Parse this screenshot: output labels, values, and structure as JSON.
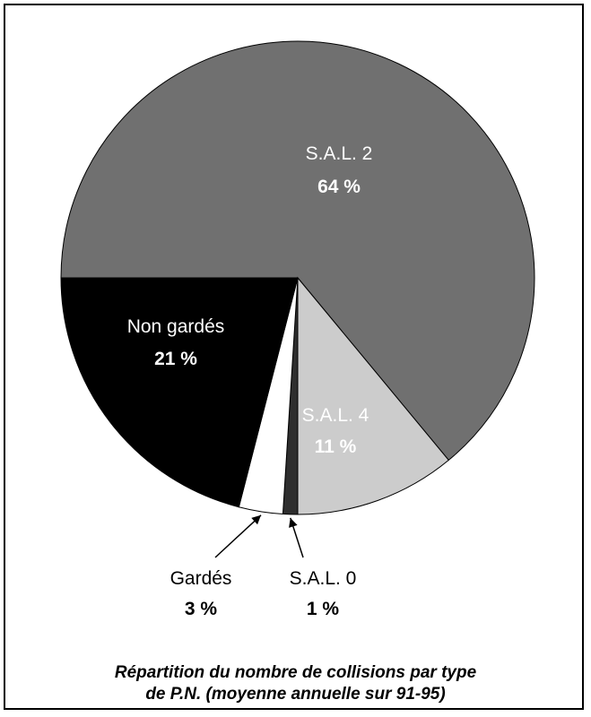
{
  "chart_data": {
    "type": "pie",
    "title": "Répartition du nombre de collisions par type de P.N. (moyenne annuelle sur 91-95)",
    "title_lines": [
      "Répartition du nombre de collisions par type",
      "de P.N. (moyenne annuelle sur 91-95)"
    ],
    "slices": [
      {
        "label": "S.A.L. 2",
        "percent_label": "64 %",
        "value": 64,
        "color": "#707070",
        "label_color": "#ffffff",
        "label_position": "inside"
      },
      {
        "label": "S.A.L. 4",
        "percent_label": "11 %",
        "value": 11,
        "color": "#cccccc",
        "label_color": "#ffffff",
        "label_position": "inside"
      },
      {
        "label": "S.A.L. 0",
        "percent_label": "1 %",
        "value": 1,
        "color": "#2e2e2e",
        "label_color": "#000000",
        "label_position": "outside"
      },
      {
        "label": "Gardés",
        "percent_label": "3 %",
        "value": 3,
        "color": "#ffffff",
        "label_color": "#000000",
        "label_position": "outside"
      },
      {
        "label": "Non gardés",
        "percent_label": "21 %",
        "value": 21,
        "color": "#000000",
        "label_color": "#ffffff",
        "label_position": "inside"
      }
    ],
    "legend": "none"
  }
}
